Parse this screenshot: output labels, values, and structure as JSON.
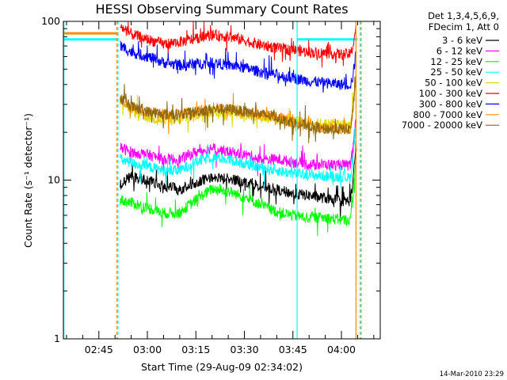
{
  "chart_data": {
    "type": "line",
    "title": "HESSI Observing Summary Count Rates",
    "xlabel": "Start Time (29-Aug-09 02:34:02)",
    "ylabel": "Count Rate (s⁻¹ detector⁻¹)",
    "yscale": "log",
    "ylim": [
      1,
      100
    ],
    "xlim_minutes": [
      154.03,
      252.0
    ],
    "x_unit": "minutes after 00:00 UT, 29-Aug-09",
    "x_ticks": [
      {
        "label": "02:45",
        "min": 165
      },
      {
        "label": "03:00",
        "min": 180
      },
      {
        "label": "03:15",
        "min": 195
      },
      {
        "label": "03:30",
        "min": 210
      },
      {
        "label": "03:45",
        "min": 225
      },
      {
        "label": "04:00",
        "min": 240
      }
    ],
    "y_ticks": [
      {
        "label": "1",
        "value": 1
      },
      {
        "label": "10",
        "value": 10
      },
      {
        "label": "100",
        "value": 100
      }
    ],
    "legend_header": [
      "Det 1,3,4,5,6,9,",
      "FDecim 1, Att 0"
    ],
    "legend_position": "outside-right",
    "grid": false,
    "footer_date": "14-Mar-2010 23:29",
    "time_knots": [
      171.6,
      175,
      180,
      185,
      190,
      195,
      200,
      205,
      210,
      215,
      220,
      225,
      230,
      235,
      240,
      242.8,
      243.6,
      244.6
    ],
    "series": [
      {
        "name": "3 - 6 keV",
        "color": "#000000",
        "values": [
          9.5,
          10.5,
          10,
          9.2,
          8.7,
          9.8,
          10.3,
          10.2,
          9.8,
          9.2,
          8.7,
          8.2,
          8.0,
          7.7,
          7.4,
          7.4,
          10,
          16
        ]
      },
      {
        "name": "6 - 12 keV",
        "color": "#ff00ff",
        "values": [
          16,
          15,
          14.5,
          13.5,
          13.5,
          15,
          16,
          15,
          14.5,
          13.5,
          13.5,
          13,
          12.5,
          12.5,
          12.5,
          12.3,
          16,
          25
        ]
      },
      {
        "name": "12 - 25 keV",
        "color": "#00ff00",
        "values": [
          7.5,
          7.2,
          6.7,
          6.2,
          6.2,
          7.5,
          8.8,
          8.5,
          7.8,
          7.0,
          6.3,
          6.0,
          5.8,
          5.8,
          5.6,
          5.6,
          8,
          14
        ]
      },
      {
        "name": "25 - 50 keV",
        "color": "#00ffff",
        "values": [
          13.5,
          12.8,
          12.2,
          11.5,
          11.5,
          13,
          14,
          13.5,
          12.8,
          12,
          11.5,
          11,
          10.8,
          10.6,
          10.5,
          10.3,
          14,
          22
        ]
      },
      {
        "name": "50 - 100 keV",
        "color": "#e0d800",
        "values": [
          33,
          27,
          25,
          23.5,
          24,
          25.5,
          27,
          27,
          26,
          25,
          24,
          23.5,
          23,
          22.5,
          22.5,
          22,
          30,
          45
        ]
      },
      {
        "name": "100 - 300 keV",
        "color": "#ff0000",
        "values": [
          93,
          83,
          77,
          72,
          74,
          78,
          82,
          80,
          76,
          71,
          68,
          66,
          64,
          63,
          62,
          62,
          70,
          95
        ]
      },
      {
        "name": "300 - 800 keV",
        "color": "#0000ff",
        "values": [
          70,
          64,
          60,
          55,
          53,
          54,
          55,
          53,
          51,
          48,
          46,
          44,
          42,
          41,
          40,
          40,
          45,
          65
        ]
      },
      {
        "name": "800 - 7000 keV",
        "color": "#ff8c00",
        "values": [
          33,
          29,
          27,
          26,
          26,
          27,
          28,
          28,
          27,
          26,
          25,
          23,
          22,
          21,
          21,
          21,
          28,
          45
        ]
      },
      {
        "name": "7000 - 20000 keV",
        "color": "#8b6914",
        "values": [
          33,
          29,
          27,
          26,
          26,
          27,
          28,
          28,
          27,
          26,
          25,
          23,
          22,
          21,
          21,
          21,
          28,
          45
        ]
      }
    ],
    "flat_lines": [
      {
        "color": "#00ffff",
        "value": 77,
        "from": 154.03,
        "to": 171.1
      },
      {
        "color": "#ff8c00",
        "value": 84,
        "from": 154.03,
        "to": 171.1
      },
      {
        "color": "#00ffff",
        "value": 77,
        "from": 226.3,
        "to": 245.0
      }
    ],
    "vertical_markers": [
      {
        "color": "#00ffff",
        "at": 154.18,
        "dashed": false
      },
      {
        "color": "#ff8c00",
        "at": 170.6,
        "dashed": true
      },
      {
        "color": "#00ffff",
        "at": 170.9,
        "dashed": true
      },
      {
        "color": "#00ffff",
        "at": 226.3,
        "dashed": false
      },
      {
        "color": "#ff8c00",
        "at": 244.5,
        "dashed": false
      },
      {
        "color": "#00ffff",
        "at": 245.8,
        "dashed": true
      },
      {
        "color": "#ff8c00",
        "at": 246.1,
        "dashed": true
      }
    ]
  }
}
